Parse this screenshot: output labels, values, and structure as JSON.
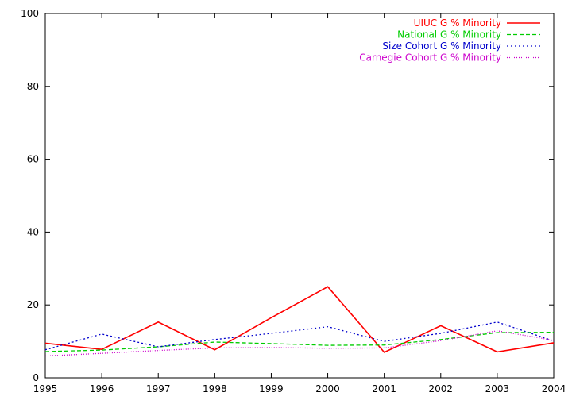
{
  "chart_data": {
    "type": "line",
    "x": [
      1995,
      1996,
      1997,
      1998,
      1999,
      2000,
      2001,
      2002,
      2003,
      2004
    ],
    "xlim": [
      1995,
      2004
    ],
    "ylim": [
      0,
      100
    ],
    "xticks": [
      "1995",
      "1996",
      "1997",
      "1998",
      "1999",
      "2000",
      "2001",
      "2002",
      "2003",
      "2004"
    ],
    "yticks": [
      "0",
      "20",
      "40",
      "60",
      "80",
      "100"
    ],
    "grid": false,
    "legend_position": "top-right",
    "series": [
      {
        "name": "UIUC G % Minority",
        "color": "#ff0000",
        "dash": "solid",
        "values": [
          9.5,
          7.8,
          15.3,
          7.7,
          16.5,
          25.0,
          7.0,
          14.3,
          7.1,
          9.6
        ]
      },
      {
        "name": "National G % Minority",
        "color": "#00cc00",
        "dash": "dashed",
        "values": [
          7.2,
          7.6,
          8.5,
          9.8,
          9.4,
          8.9,
          9.0,
          10.5,
          12.4,
          12.5
        ]
      },
      {
        "name": "Size Cohort G % Minority",
        "color": "#0000cc",
        "dash": "dotted",
        "values": [
          7.7,
          12.0,
          8.5,
          10.5,
          12.2,
          14.0,
          10.0,
          12.2,
          15.3,
          10.1
        ]
      },
      {
        "name": "Carnegie Cohort G % Minority",
        "color": "#cc00cc",
        "dash": "finedot",
        "values": [
          6.0,
          6.7,
          7.5,
          8.2,
          8.3,
          8.1,
          8.2,
          10.2,
          12.9,
          10.3
        ]
      }
    ]
  }
}
